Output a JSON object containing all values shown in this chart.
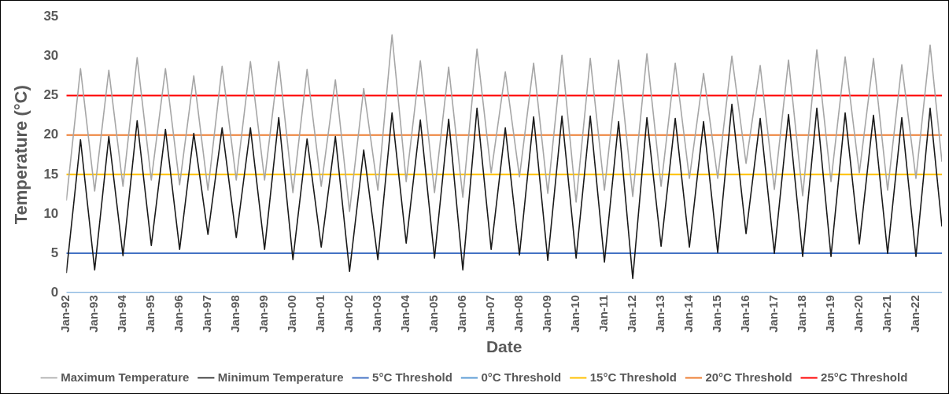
{
  "chart_data": {
    "type": "line",
    "xlabel": "Date",
    "ylabel": "Temperature (°C)",
    "xlim": [
      "1992-01",
      "2022-12"
    ],
    "ylim": [
      0,
      35
    ],
    "yticks": [
      0,
      5,
      10,
      15,
      20,
      25,
      30,
      35
    ],
    "xticks": [
      {
        "value": "1992-01",
        "label": "Jan-92"
      },
      {
        "value": "1993-01",
        "label": "Jan-93"
      },
      {
        "value": "1994-01",
        "label": "Jan-94"
      },
      {
        "value": "1995-01",
        "label": "Jan-95"
      },
      {
        "value": "1996-01",
        "label": "Jan-96"
      },
      {
        "value": "1997-01",
        "label": "Jan-97"
      },
      {
        "value": "1998-01",
        "label": "Jan-98"
      },
      {
        "value": "1999-01",
        "label": "Jan-99"
      },
      {
        "value": "2000-01",
        "label": "Jan-00"
      },
      {
        "value": "2001-01",
        "label": "Jan-01"
      },
      {
        "value": "2002-01",
        "label": "Jan-02"
      },
      {
        "value": "2003-01",
        "label": "Jan-03"
      },
      {
        "value": "2004-01",
        "label": "Jan-04"
      },
      {
        "value": "2005-01",
        "label": "Jan-05"
      },
      {
        "value": "2006-01",
        "label": "Jan-06"
      },
      {
        "value": "2007-01",
        "label": "Jan-07"
      },
      {
        "value": "2008-01",
        "label": "Jan-08"
      },
      {
        "value": "2009-01",
        "label": "Jan-09"
      },
      {
        "value": "2010-01",
        "label": "Jan-10"
      },
      {
        "value": "2011-01",
        "label": "Jan-11"
      },
      {
        "value": "2012-01",
        "label": "Jan-12"
      },
      {
        "value": "2013-01",
        "label": "Jan-13"
      },
      {
        "value": "2014-01",
        "label": "Jan-14"
      },
      {
        "value": "2015-01",
        "label": "Jan-15"
      },
      {
        "value": "2016-01",
        "label": "Jan-16"
      },
      {
        "value": "2017-01",
        "label": "Jan-17"
      },
      {
        "value": "2018-01",
        "label": "Jan-18"
      },
      {
        "value": "2019-01",
        "label": "Jan-19"
      },
      {
        "value": "2020-01",
        "label": "Jan-20"
      },
      {
        "value": "2021-01",
        "label": "Jan-21"
      },
      {
        "value": "2022-01",
        "label": "Jan-22"
      }
    ],
    "legend": "bottom",
    "grid": false,
    "x": [
      "1992-01",
      "1992-07",
      "1993-01",
      "1993-07",
      "1994-01",
      "1994-07",
      "1995-01",
      "1995-07",
      "1996-01",
      "1996-07",
      "1997-01",
      "1997-07",
      "1998-01",
      "1998-07",
      "1999-01",
      "1999-07",
      "2000-01",
      "2000-07",
      "2001-01",
      "2001-07",
      "2002-01",
      "2002-07",
      "2003-01",
      "2003-07",
      "2004-01",
      "2004-07",
      "2005-01",
      "2005-07",
      "2006-01",
      "2006-07",
      "2007-01",
      "2007-07",
      "2008-01",
      "2008-07",
      "2009-01",
      "2009-07",
      "2010-01",
      "2010-07",
      "2011-01",
      "2011-07",
      "2012-01",
      "2012-07",
      "2013-01",
      "2013-07",
      "2014-01",
      "2014-07",
      "2015-01",
      "2015-07",
      "2016-01",
      "2016-07",
      "2017-01",
      "2017-07",
      "2018-01",
      "2018-07",
      "2019-01",
      "2019-07",
      "2020-01",
      "2020-07",
      "2021-01",
      "2021-07",
      "2022-01",
      "2022-07",
      "2022-12"
    ],
    "series": [
      {
        "name": "Maximum Temperature",
        "color": "#a6a6a6",
        "values": [
          11.7,
          28.4,
          12.9,
          28.2,
          13.5,
          29.8,
          14.3,
          28.4,
          13.7,
          27.5,
          13.0,
          28.7,
          14.3,
          29.3,
          14.3,
          29.3,
          12.7,
          28.3,
          13.5,
          27.0,
          10.3,
          25.9,
          13.0,
          32.7,
          14.1,
          29.4,
          12.7,
          28.6,
          12.1,
          30.9,
          15.2,
          28.0,
          14.7,
          29.1,
          12.6,
          30.1,
          11.5,
          29.7,
          13.0,
          29.5,
          12.2,
          30.3,
          13.5,
          29.1,
          14.5,
          27.8,
          14.5,
          30.0,
          16.4,
          28.8,
          13.1,
          29.5,
          12.3,
          30.8,
          14.1,
          29.9,
          15.2,
          29.7,
          13.0,
          28.9,
          14.5,
          31.4,
          16.6
        ]
      },
      {
        "name": "Minimum Temperature",
        "color": "#1a1a1a",
        "values": [
          2.5,
          19.4,
          2.9,
          19.8,
          4.7,
          21.8,
          6.0,
          20.7,
          5.5,
          20.2,
          7.4,
          20.9,
          7.0,
          20.9,
          5.5,
          22.2,
          4.2,
          19.5,
          5.8,
          19.8,
          2.7,
          18.1,
          4.2,
          22.8,
          6.3,
          21.9,
          4.4,
          22.0,
          2.9,
          23.4,
          5.5,
          20.9,
          4.8,
          22.3,
          4.1,
          22.4,
          4.4,
          22.4,
          3.9,
          21.7,
          1.8,
          22.2,
          5.9,
          22.1,
          5.8,
          21.7,
          5.1,
          23.9,
          7.5,
          22.1,
          5.0,
          22.6,
          4.6,
          23.4,
          4.6,
          22.8,
          6.2,
          22.5,
          5.0,
          22.2,
          4.6,
          23.4,
          8.4
        ]
      },
      {
        "name": "5°C Threshold",
        "color": "#4472c4",
        "x": [
          "1992-01",
          "2022-12"
        ],
        "values": [
          5,
          5
        ]
      },
      {
        "name": "0°C Threshold",
        "color": "#5b9bd5",
        "x": [
          "1992-01",
          "2022-12"
        ],
        "values": [
          0,
          0
        ]
      },
      {
        "name": "15°C Threshold",
        "color": "#ffc000",
        "x": [
          "1992-01",
          "2022-12"
        ],
        "values": [
          15,
          15
        ]
      },
      {
        "name": "20°C Threshold",
        "color": "#ed7d31",
        "x": [
          "1992-01",
          "2022-12"
        ],
        "values": [
          20,
          20
        ]
      },
      {
        "name": "25°C Threshold",
        "color": "#ff0000",
        "x": [
          "1992-01",
          "2022-12"
        ],
        "values": [
          25,
          25
        ]
      }
    ]
  }
}
